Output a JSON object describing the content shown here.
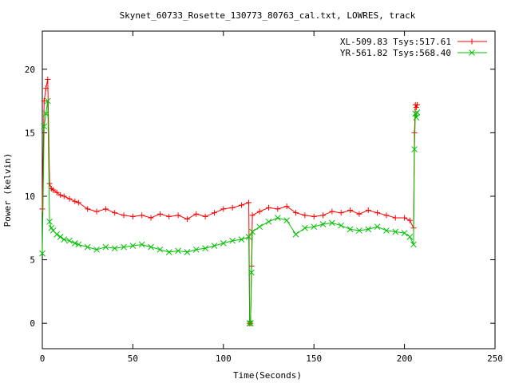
{
  "chart_data": {
    "type": "line",
    "title": "Skynet_60733_Rosette_130773_80763_cal.txt, LOWRES, track",
    "xlabel": "Time(Seconds)",
    "ylabel": "Power (kelvin)",
    "xlim": [
      0,
      250
    ],
    "ylim": [
      -2,
      23
    ],
    "x_ticks": [
      0,
      50,
      100,
      150,
      200,
      250
    ],
    "y_ticks": [
      0,
      5,
      10,
      15,
      20
    ],
    "legend_position": "top-right",
    "series": [
      {
        "name": "XL-509.83 Tsys:517.61",
        "color": "#ff0000",
        "marker": "plus",
        "x": [
          0,
          1,
          2,
          3,
          4,
          5,
          6,
          8,
          10,
          12,
          15,
          18,
          20,
          25,
          30,
          35,
          40,
          45,
          50,
          55,
          60,
          65,
          70,
          75,
          80,
          85,
          90,
          95,
          100,
          105,
          110,
          114,
          114.5,
          115,
          115.5,
          116,
          120,
          125,
          130,
          135,
          140,
          145,
          150,
          155,
          160,
          165,
          170,
          175,
          180,
          185,
          190,
          195,
          200,
          203,
          205,
          205.5,
          206,
          206.5,
          207
        ],
        "y": [
          9,
          17.5,
          18.5,
          19.2,
          11,
          10.6,
          10.5,
          10.3,
          10.1,
          10,
          9.8,
          9.6,
          9.5,
          9.0,
          8.8,
          9.0,
          8.7,
          8.5,
          8.4,
          8.5,
          8.3,
          8.6,
          8.4,
          8.5,
          8.2,
          8.6,
          8.4,
          8.7,
          9.0,
          9.1,
          9.3,
          9.5,
          0,
          0,
          4.5,
          8.5,
          8.8,
          9.1,
          9.0,
          9.2,
          8.7,
          8.5,
          8.4,
          8.5,
          8.8,
          8.7,
          8.9,
          8.6,
          8.9,
          8.7,
          8.5,
          8.3,
          8.3,
          8.1,
          7.5,
          15,
          17.2,
          17,
          17.2
        ]
      },
      {
        "name": "YR-561.82 Tsys:568.40",
        "color": "#00c000",
        "marker": "cross",
        "x": [
          0,
          1,
          2,
          3,
          4,
          5,
          6,
          8,
          10,
          12,
          15,
          18,
          20,
          25,
          30,
          35,
          40,
          45,
          50,
          55,
          60,
          65,
          70,
          75,
          80,
          85,
          90,
          95,
          100,
          105,
          110,
          114,
          114.5,
          115,
          115.5,
          116,
          120,
          125,
          130,
          135,
          140,
          145,
          150,
          155,
          160,
          165,
          170,
          175,
          180,
          185,
          190,
          195,
          200,
          203,
          205,
          205.5,
          206,
          206.5,
          207
        ],
        "y": [
          5.5,
          15.5,
          16.5,
          17.5,
          8,
          7.5,
          7.3,
          7.0,
          6.8,
          6.6,
          6.5,
          6.3,
          6.2,
          6.0,
          5.8,
          6.0,
          5.9,
          6.0,
          6.1,
          6.2,
          6.0,
          5.8,
          5.6,
          5.7,
          5.6,
          5.8,
          5.9,
          6.1,
          6.3,
          6.5,
          6.6,
          6.8,
          0,
          0,
          4.0,
          7.2,
          7.6,
          8.0,
          8.3,
          8.1,
          7.0,
          7.5,
          7.6,
          7.8,
          7.9,
          7.7,
          7.4,
          7.3,
          7.4,
          7.6,
          7.3,
          7.2,
          7.1,
          6.8,
          6.2,
          13.7,
          16.5,
          16.2,
          16.6
        ]
      }
    ]
  }
}
